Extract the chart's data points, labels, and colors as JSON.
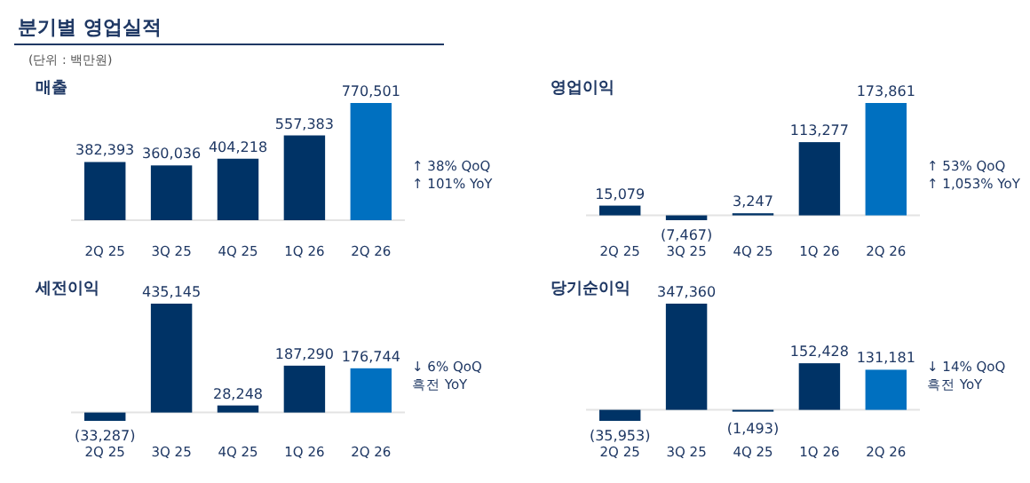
{
  "chart_data": [
    {
      "type": "bar",
      "title": "분기별 영업실적",
      "subtitle": "(단위 : 백만원)",
      "ylabel": "매출",
      "categories": [
        "2Q 25",
        "3Q 25",
        "4Q 25",
        "1Q 26",
        "2Q 26"
      ],
      "values": [
        382393,
        360036,
        404218,
        557383,
        770501
      ],
      "colors": [
        "#003366",
        "#003366",
        "#003366",
        "#003366",
        "#0070c0"
      ],
      "value_labels": [
        "382,393",
        "360,036",
        "404,218",
        "557,383",
        "770,501"
      ],
      "annotations": [
        "↑ 38% QoQ",
        "↑ 101% YoY"
      ]
    },
    {
      "type": "bar",
      "ylabel": "영업이익",
      "categories": [
        "2Q 25",
        "3Q 25",
        "4Q 25",
        "1Q 26",
        "2Q 26"
      ],
      "values": [
        15079,
        -7467,
        3247,
        113277,
        173861
      ],
      "colors": [
        "#003366",
        "#003366",
        "#003366",
        "#003366",
        "#0070c0"
      ],
      "value_labels": [
        "15,079",
        "(7,467)",
        "3,247",
        "113,277",
        "173,861"
      ],
      "annotations": [
        "↑ 53% QoQ",
        "↑ 1,053% YoY"
      ]
    },
    {
      "type": "bar",
      "ylabel": "세전이익",
      "categories": [
        "2Q 25",
        "3Q 25",
        "4Q 25",
        "1Q 26",
        "2Q 26"
      ],
      "values": [
        -33287,
        435145,
        28248,
        187290,
        176744
      ],
      "colors": [
        "#003366",
        "#003366",
        "#003366",
        "#003366",
        "#0070c0"
      ],
      "value_labels": [
        "(33,287)",
        "435,145",
        "28,248",
        "187,290",
        "176,744"
      ],
      "annotations": [
        "↓ 6% QoQ",
        "흑전 YoY"
      ]
    },
    {
      "type": "bar",
      "ylabel": "당기순이익",
      "categories": [
        "2Q 25",
        "3Q 25",
        "4Q 25",
        "1Q 26",
        "2Q 26"
      ],
      "values": [
        -35953,
        347360,
        -1493,
        152428,
        131181
      ],
      "colors": [
        "#003366",
        "#003366",
        "#003366",
        "#003366",
        "#0070c0"
      ],
      "value_labels": [
        "(35,953)",
        "347,360",
        "(1,493)",
        "152,428",
        "131,181"
      ],
      "annotations": [
        "↓ 14% QoQ",
        "흑전 YoY"
      ]
    }
  ]
}
